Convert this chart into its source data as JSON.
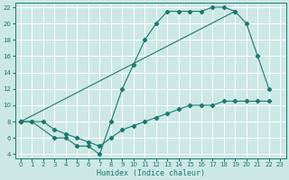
{
  "xlabel": "Humidex (Indice chaleur)",
  "bg_color": "#cce8e5",
  "grid_color": "#ffffff",
  "line_color": "#1a7a6e",
  "xlim": [
    -0.5,
    23.5
  ],
  "ylim": [
    3.5,
    22.5
  ],
  "xticks": [
    0,
    1,
    2,
    3,
    4,
    5,
    6,
    7,
    8,
    9,
    10,
    11,
    12,
    13,
    14,
    15,
    16,
    17,
    18,
    19,
    20,
    21,
    22,
    23
  ],
  "yticks": [
    4,
    6,
    8,
    10,
    12,
    14,
    16,
    18,
    20,
    22
  ],
  "curve1_x": [
    0,
    1,
    3,
    4,
    5,
    6,
    7,
    8,
    9,
    10,
    11,
    12,
    13,
    14,
    15,
    16,
    17,
    18,
    19
  ],
  "curve1_y": [
    8,
    8,
    6,
    6,
    5,
    5,
    4,
    8,
    12,
    15,
    18,
    20,
    21.5,
    21.5,
    21.5,
    21.5,
    22,
    22,
    21.5
  ],
  "curve2_x": [
    0,
    19,
    20,
    21,
    22
  ],
  "curve2_y": [
    8,
    21.5,
    20,
    16,
    12
  ],
  "curve3_x": [
    0,
    1,
    2,
    3,
    4,
    5,
    6,
    7,
    8,
    9,
    10,
    11,
    12,
    13,
    14,
    15,
    16,
    17,
    18,
    19,
    20,
    21,
    22
  ],
  "curve3_y": [
    8,
    8,
    8,
    7,
    6.5,
    6,
    5.5,
    5,
    6,
    7,
    7.5,
    8,
    8.5,
    9,
    9.5,
    10,
    10,
    10,
    10.5,
    10.5,
    10.5,
    10.5,
    10.5
  ]
}
